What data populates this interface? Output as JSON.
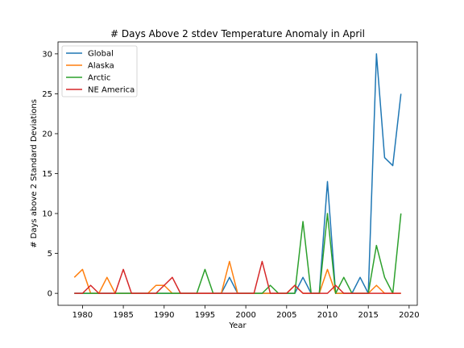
{
  "chart_data": {
    "type": "line",
    "title": "# Days Above 2 stdev Temperature Anomaly in April",
    "xlabel": "Year",
    "ylabel": "# Days above 2 Standard Deviations",
    "xlim": [
      1977,
      2021
    ],
    "ylim": [
      -1.5,
      31.5
    ],
    "xticks": [
      1980,
      1985,
      1990,
      1995,
      2000,
      2005,
      2010,
      2015,
      2020
    ],
    "yticks": [
      0,
      5,
      10,
      15,
      20,
      25,
      30
    ],
    "grid": false,
    "legend_position": "top-left",
    "x": [
      1979,
      1980,
      1981,
      1982,
      1983,
      1984,
      1985,
      1986,
      1987,
      1988,
      1989,
      1990,
      1991,
      1992,
      1993,
      1994,
      1995,
      1996,
      1997,
      1998,
      1999,
      2000,
      2001,
      2002,
      2003,
      2004,
      2005,
      2006,
      2007,
      2008,
      2009,
      2010,
      2011,
      2012,
      2013,
      2014,
      2015,
      2016,
      2017,
      2018,
      2019
    ],
    "series": [
      {
        "name": "Global",
        "color": "#1f77b4",
        "values": [
          0,
          0,
          0,
          0,
          0,
          0,
          0,
          0,
          0,
          0,
          0,
          0,
          0,
          0,
          0,
          0,
          0,
          0,
          0,
          2,
          0,
          0,
          0,
          0,
          0,
          0,
          0,
          0,
          2,
          0,
          0,
          14,
          0,
          0,
          0,
          2,
          0,
          30,
          17,
          16,
          25
        ]
      },
      {
        "name": "Alaska",
        "color": "#ff7f0e",
        "values": [
          2,
          3,
          0,
          0,
          2,
          0,
          0,
          0,
          0,
          0,
          1,
          1,
          0,
          0,
          0,
          0,
          0,
          0,
          0,
          4,
          0,
          0,
          0,
          0,
          0,
          0,
          0,
          1,
          0,
          0,
          0,
          3,
          0,
          0,
          0,
          0,
          0,
          1,
          0,
          0,
          0
        ]
      },
      {
        "name": "Arctic",
        "color": "#2ca02c",
        "values": [
          0,
          0,
          0,
          0,
          0,
          0,
          0,
          0,
          0,
          0,
          0,
          0,
          0,
          0,
          0,
          0,
          3,
          0,
          0,
          0,
          0,
          0,
          0,
          0,
          1,
          0,
          0,
          0,
          9,
          0,
          0,
          10,
          0,
          2,
          0,
          0,
          0,
          6,
          2,
          0,
          10
        ]
      },
      {
        "name": "NE America",
        "color": "#d62728",
        "values": [
          0,
          0,
          1,
          0,
          0,
          0,
          3,
          0,
          0,
          0,
          0,
          1,
          2,
          0,
          0,
          0,
          0,
          0,
          0,
          0,
          0,
          0,
          0,
          4,
          0,
          0,
          0,
          1,
          0,
          0,
          0,
          0,
          1,
          0,
          0,
          0,
          0,
          0,
          0,
          0,
          0
        ]
      }
    ]
  }
}
